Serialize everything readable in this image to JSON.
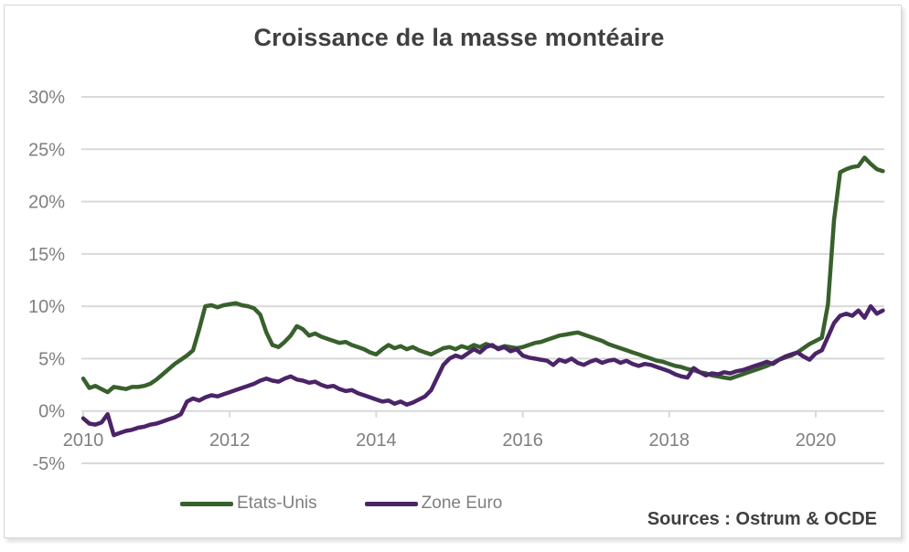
{
  "title": "Croissance de la masse montéaire",
  "source_note": "Sources : Ostrum & OCDE",
  "legend": [
    {
      "label": "Etats-Unis",
      "color": "#38602c"
    },
    {
      "label": "Zone Euro",
      "color": "#4b2468"
    }
  ],
  "colors": {
    "grid": "#d9d9d9",
    "axis_text": "#7f7f7f",
    "title_text": "#404040",
    "us_line": "#38602c",
    "euro_line": "#4b2468"
  },
  "chart_data": {
    "type": "line",
    "title": "Croissance de la masse montéaire",
    "xlabel": "",
    "ylabel": "",
    "grid": true,
    "legend_position": "bottom",
    "ylim": [
      -5,
      30
    ],
    "y_ticks": [
      30,
      25,
      20,
      15,
      10,
      5,
      0,
      -5
    ],
    "y_tick_format": "percent",
    "x_tick_years": [
      2010,
      2012,
      2014,
      2016,
      2018,
      2020
    ],
    "x_start_year": 2010,
    "x_frequency": "monthly",
    "series": [
      {
        "name": "Etats-Unis",
        "color": "#38602c",
        "values": [
          3.1,
          2.2,
          2.4,
          2.1,
          1.8,
          2.3,
          2.2,
          2.1,
          2.3,
          2.3,
          2.4,
          2.6,
          3.0,
          3.5,
          4.0,
          4.5,
          4.9,
          5.3,
          5.8,
          7.8,
          10.0,
          10.1,
          9.9,
          10.1,
          10.2,
          10.3,
          10.1,
          10.0,
          9.8,
          9.2,
          7.5,
          6.3,
          6.1,
          6.6,
          7.2,
          8.1,
          7.8,
          7.2,
          7.4,
          7.1,
          6.9,
          6.7,
          6.5,
          6.6,
          6.3,
          6.1,
          5.9,
          5.6,
          5.4,
          5.9,
          6.3,
          6.0,
          6.2,
          5.9,
          6.1,
          5.8,
          5.6,
          5.4,
          5.7,
          6.0,
          6.1,
          5.9,
          6.2,
          6.0,
          6.3,
          6.1,
          6.4,
          6.2,
          6.0,
          6.2,
          6.1,
          6.0,
          6.1,
          6.3,
          6.5,
          6.6,
          6.8,
          7.0,
          7.2,
          7.3,
          7.4,
          7.5,
          7.3,
          7.1,
          6.9,
          6.7,
          6.4,
          6.2,
          6.0,
          5.8,
          5.6,
          5.4,
          5.2,
          5.0,
          4.8,
          4.7,
          4.5,
          4.3,
          4.2,
          4.0,
          3.9,
          3.7,
          3.6,
          3.4,
          3.3,
          3.2,
          3.1,
          3.3,
          3.5,
          3.7,
          3.9,
          4.1,
          4.3,
          4.6,
          4.9,
          5.1,
          5.3,
          5.6,
          6.0,
          6.4,
          6.7,
          7.0,
          10.2,
          18.2,
          22.8,
          23.1,
          23.3,
          23.4,
          24.2,
          23.6,
          23.1,
          22.9
        ]
      },
      {
        "name": "Zone Euro",
        "color": "#4b2468",
        "values": [
          -0.7,
          -1.2,
          -1.3,
          -1.1,
          -0.3,
          -2.3,
          -2.1,
          -1.9,
          -1.8,
          -1.6,
          -1.5,
          -1.3,
          -1.2,
          -1.0,
          -0.8,
          -0.6,
          -0.3,
          0.9,
          1.2,
          1.0,
          1.3,
          1.5,
          1.4,
          1.6,
          1.8,
          2.0,
          2.2,
          2.4,
          2.6,
          2.9,
          3.1,
          2.9,
          2.8,
          3.1,
          3.3,
          3.0,
          2.9,
          2.7,
          2.8,
          2.5,
          2.3,
          2.4,
          2.1,
          1.9,
          2.0,
          1.7,
          1.5,
          1.3,
          1.1,
          0.9,
          1.0,
          0.7,
          0.9,
          0.6,
          0.8,
          1.1,
          1.4,
          2.0,
          3.2,
          4.4,
          5.0,
          5.3,
          5.1,
          5.5,
          5.9,
          5.6,
          6.1,
          6.3,
          5.9,
          6.1,
          5.7,
          5.9,
          5.3,
          5.1,
          5.0,
          4.9,
          4.8,
          4.4,
          4.9,
          4.7,
          5.0,
          4.6,
          4.4,
          4.7,
          4.9,
          4.6,
          4.8,
          4.9,
          4.6,
          4.8,
          4.5,
          4.3,
          4.5,
          4.4,
          4.2,
          4.0,
          3.8,
          3.5,
          3.3,
          3.2,
          4.1,
          3.7,
          3.4,
          3.6,
          3.5,
          3.7,
          3.6,
          3.8,
          3.9,
          4.1,
          4.3,
          4.5,
          4.7,
          4.5,
          4.9,
          5.2,
          5.4,
          5.6,
          5.2,
          4.9,
          5.5,
          5.8,
          7.1,
          8.4,
          9.1,
          9.3,
          9.1,
          9.6,
          8.9,
          10.0,
          9.3,
          9.6
        ]
      }
    ]
  }
}
